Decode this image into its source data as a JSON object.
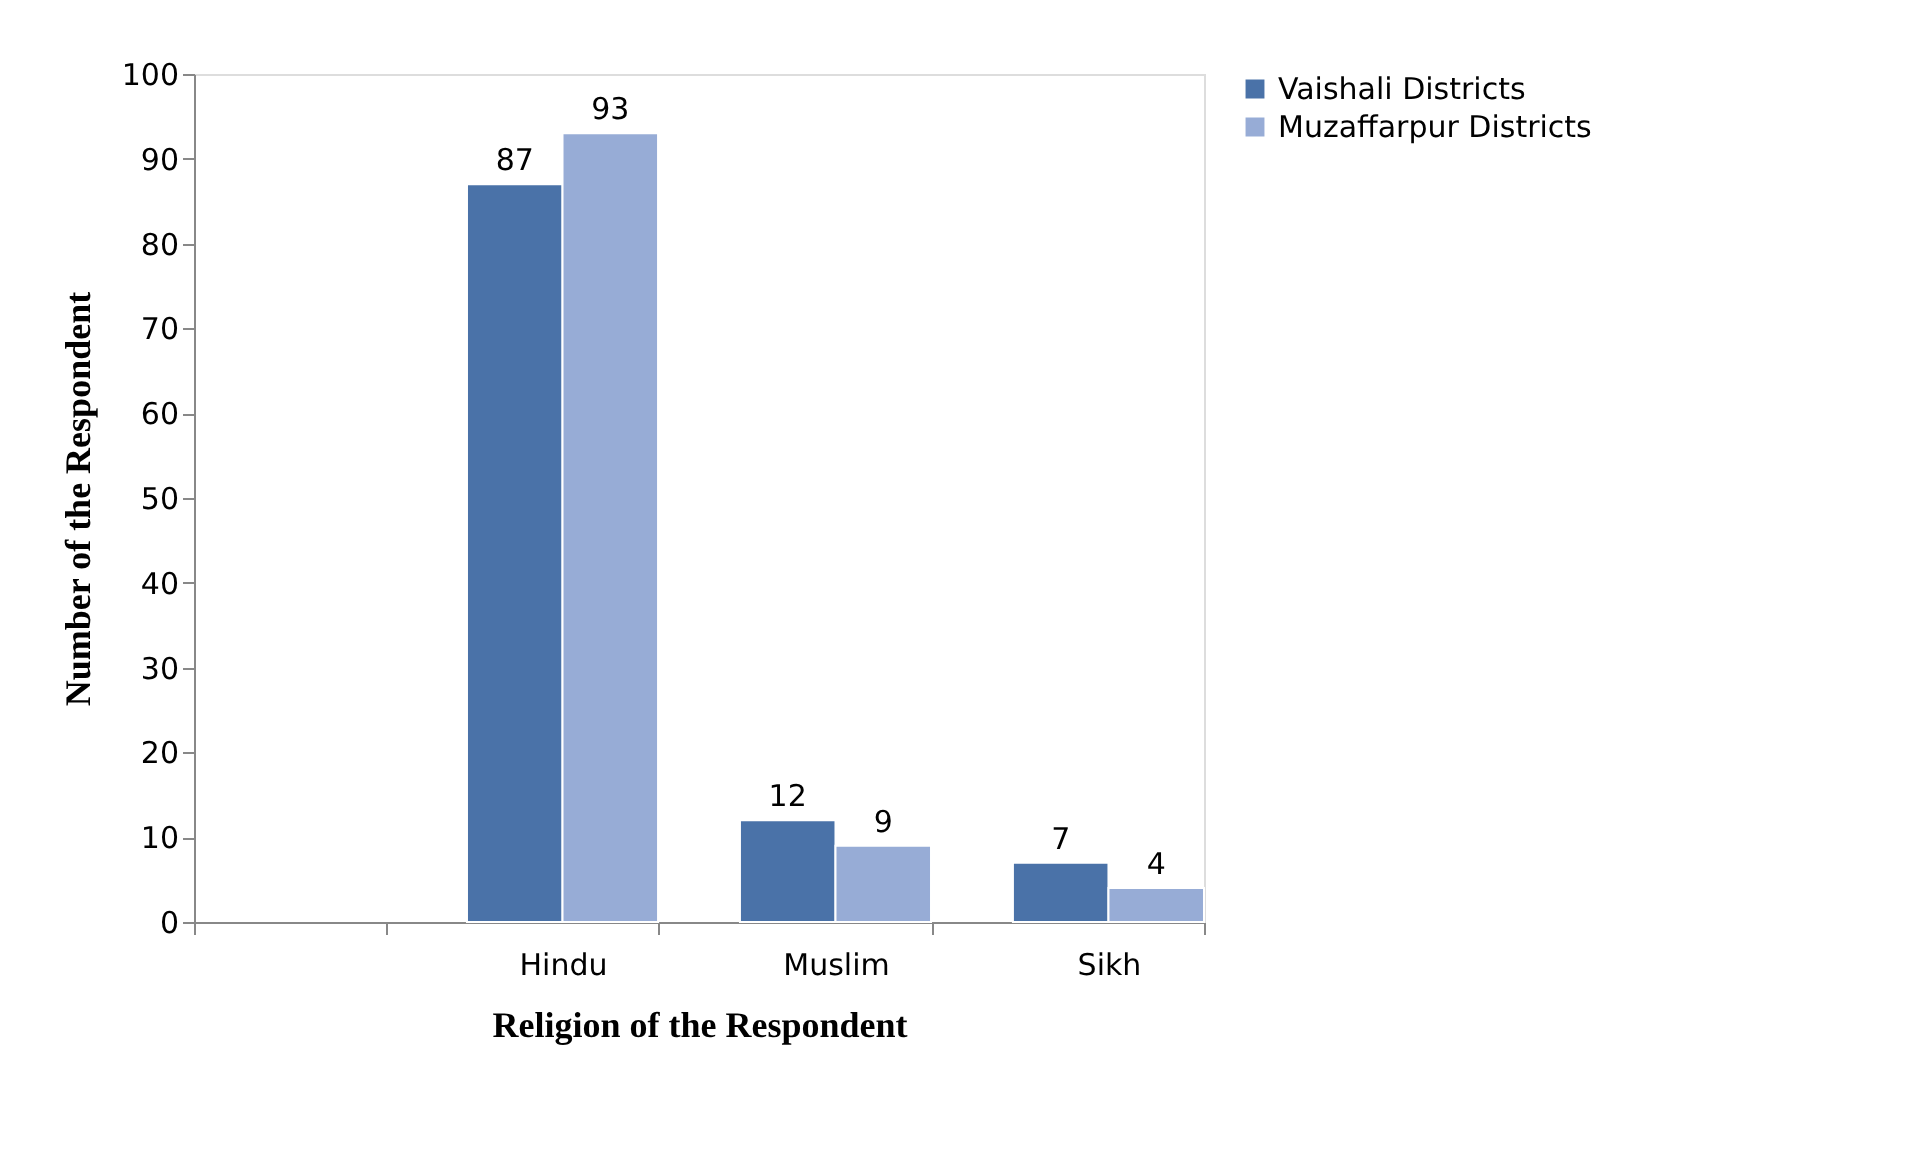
{
  "chart_data": {
    "type": "bar",
    "xlabel": "Religion of the Respondent",
    "ylabel": "Number of the Respondent",
    "categories": [
      null,
      "Hindu",
      "Muslim",
      "Sikh"
    ],
    "series": [
      {
        "name": "Vaishali Districts",
        "color": "#4a72a8",
        "values": [
          null,
          87,
          12,
          7
        ]
      },
      {
        "name": "Muzaffarpur Districts",
        "color": "#97acd6",
        "values": [
          null,
          93,
          9,
          4
        ]
      }
    ],
    "ylim": [
      0,
      100
    ],
    "yticks": [
      0,
      10,
      20,
      30,
      40,
      50,
      60,
      70,
      80,
      90,
      100
    ],
    "data_labels": true,
    "legend": "right",
    "grid": false
  }
}
